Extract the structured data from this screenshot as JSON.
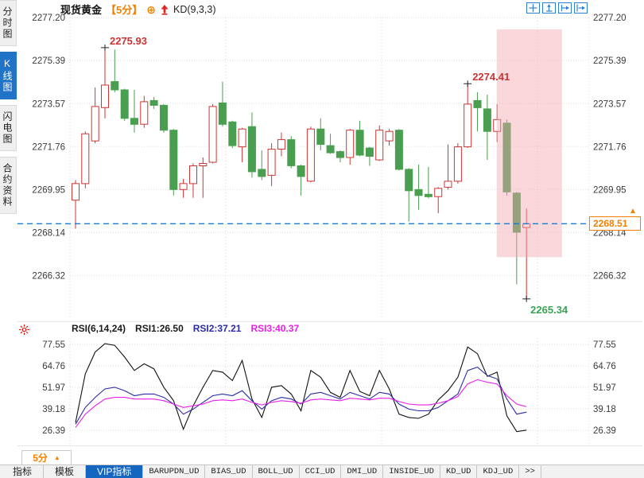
{
  "header": {
    "symbol": "现货黄金",
    "period": "【5分】",
    "add_icon": "⊕",
    "indicator": "KD(9,3,3)",
    "toolbar_icons": [
      "crosshair",
      "y-scale",
      "x-scale",
      "page-forward"
    ]
  },
  "sidebar": {
    "items": [
      {
        "label": "分时图",
        "active": false
      },
      {
        "label": "K线图",
        "active": true
      },
      {
        "label": "闪电图",
        "active": false
      },
      {
        "label": "合约资料",
        "active": false
      }
    ]
  },
  "price_panel": {
    "axis": [
      2277.2,
      2275.39,
      2273.57,
      2271.76,
      2269.95,
      2268.14,
      2266.32
    ],
    "last_price": "2268.51",
    "annotations": [
      {
        "text": "2275.93",
        "candle": 3,
        "at": "high",
        "color": "#cc3333"
      },
      {
        "text": "2274.41",
        "candle": 40,
        "at": "high",
        "color": "#cc3333"
      },
      {
        "text": "2265.34",
        "candle": 46,
        "at": "low",
        "color": "#3aa356"
      }
    ]
  },
  "rsi_panel": {
    "title": "RSI(6,14,24)",
    "rsi1": "RSI1:26.50",
    "rsi2": "RSI2:37.21",
    "rsi3": "RSI3:40.37"
  },
  "bottom": {
    "period": "5分",
    "tabs": [
      {
        "label": "指标",
        "active": false
      },
      {
        "label": "模板",
        "active": false
      },
      {
        "label": "VIP指标",
        "active": true
      },
      {
        "label": "BARUPDN_UD",
        "active": false
      },
      {
        "label": "BIAS_UD",
        "active": false
      },
      {
        "label": "BOLL_UD",
        "active": false
      },
      {
        "label": "CCI_UD",
        "active": false
      },
      {
        "label": "DMI_UD",
        "active": false
      },
      {
        "label": "INSIDE_UD",
        "active": false
      },
      {
        "label": "KD_UD",
        "active": false
      },
      {
        "label": "KDJ_UD",
        "active": false
      },
      {
        "label": ">>",
        "active": false
      }
    ]
  },
  "colors": {
    "up": "#cf3434",
    "down": "#4a9e50",
    "last_price_line": "#1f7ad4",
    "highlight": "#f2a6b0",
    "accent_orange": "#f08000",
    "accent_blue": "#2173c8",
    "rsi1": "#111111",
    "rsi2": "#2b2ba6",
    "rsi3": "#ea1fea"
  },
  "chart_data": {
    "type": "candlestick",
    "title": "现货黄金 5分 K线 + RSI(6,14,24)",
    "price_gridlines": [
      2277.2,
      2275.39,
      2273.57,
      2271.76,
      2269.95,
      2268.14,
      2266.32
    ],
    "candles_ohlc": [
      [
        2269.5,
        2270.35,
        2268.3,
        2270.2
      ],
      [
        2270.2,
        2272.4,
        2270.0,
        2272.3
      ],
      [
        2272.0,
        2274.25,
        2271.9,
        2273.45
      ],
      [
        2273.4,
        2275.93,
        2272.95,
        2274.35
      ],
      [
        2274.5,
        2275.85,
        2274.05,
        2274.15
      ],
      [
        2274.15,
        2274.2,
        2272.85,
        2272.95
      ],
      [
        2272.95,
        2274.15,
        2272.35,
        2272.7
      ],
      [
        2272.7,
        2273.9,
        2272.55,
        2273.65
      ],
      [
        2273.7,
        2273.85,
        2273.35,
        2273.5
      ],
      [
        2273.5,
        2273.55,
        2272.35,
        2272.45
      ],
      [
        2272.45,
        2272.5,
        2269.7,
        2269.95
      ],
      [
        2269.95,
        2270.4,
        2269.6,
        2270.2
      ],
      [
        2270.2,
        2271.05,
        2269.6,
        2270.95
      ],
      [
        2270.95,
        2271.3,
        2269.6,
        2271.05
      ],
      [
        2271.1,
        2273.55,
        2271.05,
        2273.45
      ],
      [
        2273.6,
        2274.5,
        2272.6,
        2272.7
      ],
      [
        2272.8,
        2272.85,
        2271.7,
        2271.8
      ],
      [
        2271.75,
        2272.55,
        2271.1,
        2272.5
      ],
      [
        2272.6,
        2273.2,
        2270.45,
        2270.7
      ],
      [
        2270.8,
        2271.6,
        2270.35,
        2270.5
      ],
      [
        2270.55,
        2271.9,
        2270.1,
        2271.65
      ],
      [
        2271.65,
        2272.35,
        2271.35,
        2272.05
      ],
      [
        2272.05,
        2272.2,
        2270.85,
        2270.95
      ],
      [
        2270.95,
        2271.0,
        2269.7,
        2270.5
      ],
      [
        2270.3,
        2272.6,
        2270.25,
        2272.5
      ],
      [
        2272.5,
        2272.95,
        2271.6,
        2271.85
      ],
      [
        2271.8,
        2272.3,
        2271.45,
        2271.5
      ],
      [
        2271.55,
        2271.6,
        2271.1,
        2271.3
      ],
      [
        2271.3,
        2272.5,
        2271.0,
        2272.45
      ],
      [
        2272.45,
        2272.85,
        2271.35,
        2271.4
      ],
      [
        2271.7,
        2271.75,
        2270.95,
        2271.35
      ],
      [
        2271.2,
        2272.65,
        2271.15,
        2272.45
      ],
      [
        2272.0,
        2272.5,
        2271.8,
        2272.4
      ],
      [
        2272.45,
        2272.5,
        2270.75,
        2270.8
      ],
      [
        2270.8,
        2270.85,
        2268.6,
        2269.9
      ],
      [
        2269.95,
        2271.0,
        2269.1,
        2269.7
      ],
      [
        2269.75,
        2270.9,
        2269.58,
        2269.65
      ],
      [
        2269.65,
        2270.05,
        2268.95,
        2270.0
      ],
      [
        2270.05,
        2271.85,
        2269.95,
        2270.3
      ],
      [
        2270.3,
        2271.9,
        2270.2,
        2271.75
      ],
      [
        2271.75,
        2274.41,
        2271.7,
        2273.55
      ],
      [
        2273.7,
        2274.05,
        2272.4,
        2273.4
      ],
      [
        2273.35,
        2273.95,
        2271.2,
        2272.4
      ],
      [
        2272.4,
        2273.55,
        2271.95,
        2272.9
      ],
      [
        2272.75,
        2272.9,
        2269.7,
        2269.85
      ],
      [
        2269.8,
        2269.85,
        2265.95,
        2268.15
      ],
      [
        2268.35,
        2269.15,
        2265.34,
        2268.51
      ]
    ],
    "highlight_zone": {
      "from_candle": 43.45,
      "to_candle": 50.1,
      "price_top": 2276.7,
      "price_bottom": 2267.1
    },
    "rsi": {
      "gridlines": [
        77.55,
        64.76,
        51.97,
        39.18,
        26.39
      ],
      "series": [
        {
          "name": "RSI1",
          "color": "#111111",
          "values": [
            31,
            60,
            73,
            78,
            77,
            70,
            62,
            66,
            63,
            52,
            44,
            27,
            41,
            52,
            62,
            61,
            56,
            68,
            45,
            34,
            52,
            53,
            48,
            38,
            62,
            58,
            49,
            46,
            62,
            49.5,
            47,
            62,
            51,
            36,
            34,
            33.5,
            36,
            44.5,
            50,
            58,
            76,
            72,
            58.5,
            61,
            35,
            25.6,
            26.5
          ]
        },
        {
          "name": "RSI2",
          "color": "#2b2ba6",
          "values": [
            30,
            40,
            46,
            51,
            52,
            50,
            47,
            48,
            48,
            46,
            42,
            36,
            39,
            43,
            47,
            48,
            47,
            50,
            44,
            39,
            44,
            46,
            45,
            42,
            48,
            49,
            47,
            45,
            49,
            47,
            45,
            49,
            48,
            42,
            39,
            38,
            38,
            40,
            44,
            48,
            62,
            64,
            59,
            57,
            45,
            36,
            37.2
          ]
        },
        {
          "name": "RSI3",
          "color": "#ea1fea",
          "values": [
            28,
            36,
            41,
            45,
            46,
            46,
            45,
            45,
            45,
            44,
            42,
            40,
            41,
            42,
            44,
            44.5,
            44,
            45,
            43,
            41.5,
            43,
            44,
            43.5,
            42.5,
            44.5,
            45,
            44.5,
            44,
            45.5,
            45,
            44.5,
            45.5,
            45.5,
            43.5,
            42,
            41.5,
            41.5,
            42.5,
            44,
            46.5,
            54,
            56.5,
            55,
            54,
            47,
            42,
            40.4
          ]
        }
      ]
    }
  }
}
